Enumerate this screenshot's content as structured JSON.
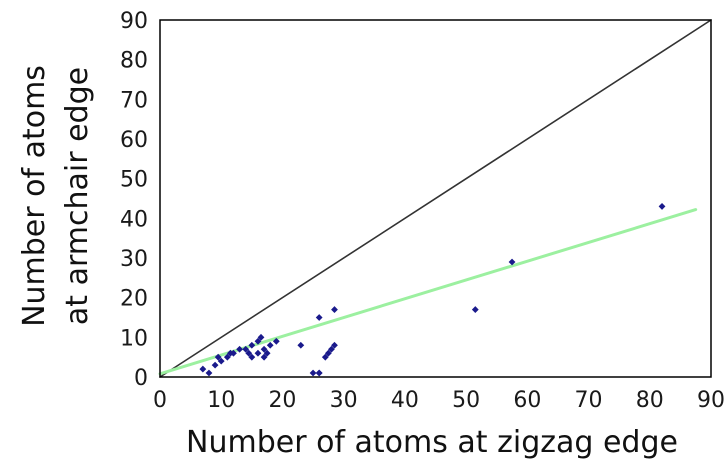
{
  "chart_data": {
    "type": "scatter",
    "title": "",
    "xlabel": "Number of atoms at zigzag edge",
    "ylabel": [
      "Number of atoms",
      "at armchair edge"
    ],
    "xlim": [
      0,
      90
    ],
    "ylim": [
      0,
      90
    ],
    "xticks": [
      "0",
      "10",
      "20",
      "30",
      "40",
      "50",
      "60",
      "70",
      "80",
      "90"
    ],
    "yticks": [
      "0",
      "10",
      "20",
      "30",
      "40",
      "50",
      "60",
      "70",
      "80",
      "90"
    ],
    "grid": false,
    "legend": "none",
    "colors": {
      "points": "#1a1a8c",
      "identity_line": "#333333",
      "fit_line": "#9cf0a0",
      "frame": "#000000"
    },
    "series": [
      {
        "kind": "points",
        "x": [
          7,
          8,
          9,
          9.5,
          10,
          11,
          11.5,
          12,
          13,
          14,
          14.5,
          15,
          15,
          16,
          16,
          16.5,
          17,
          17,
          17.5,
          18,
          19,
          23,
          25,
          26,
          26,
          26,
          27,
          27.5,
          28,
          28.5,
          28.5,
          51.5,
          57.5,
          82
        ],
        "y": [
          2,
          1,
          3,
          5,
          4,
          5,
          6,
          6,
          7,
          7,
          6,
          5,
          8,
          6,
          9,
          10,
          7,
          5,
          6,
          8,
          9,
          8,
          1,
          1,
          15,
          1,
          5,
          6,
          7,
          8,
          17,
          17,
          29,
          43
        ]
      },
      {
        "kind": "line",
        "role": "identity",
        "x": [
          0,
          90
        ],
        "y": [
          0,
          90
        ]
      },
      {
        "kind": "line",
        "role": "linear fit",
        "x": [
          0,
          87.5
        ],
        "y": [
          0.8,
          42.2
        ]
      }
    ]
  }
}
